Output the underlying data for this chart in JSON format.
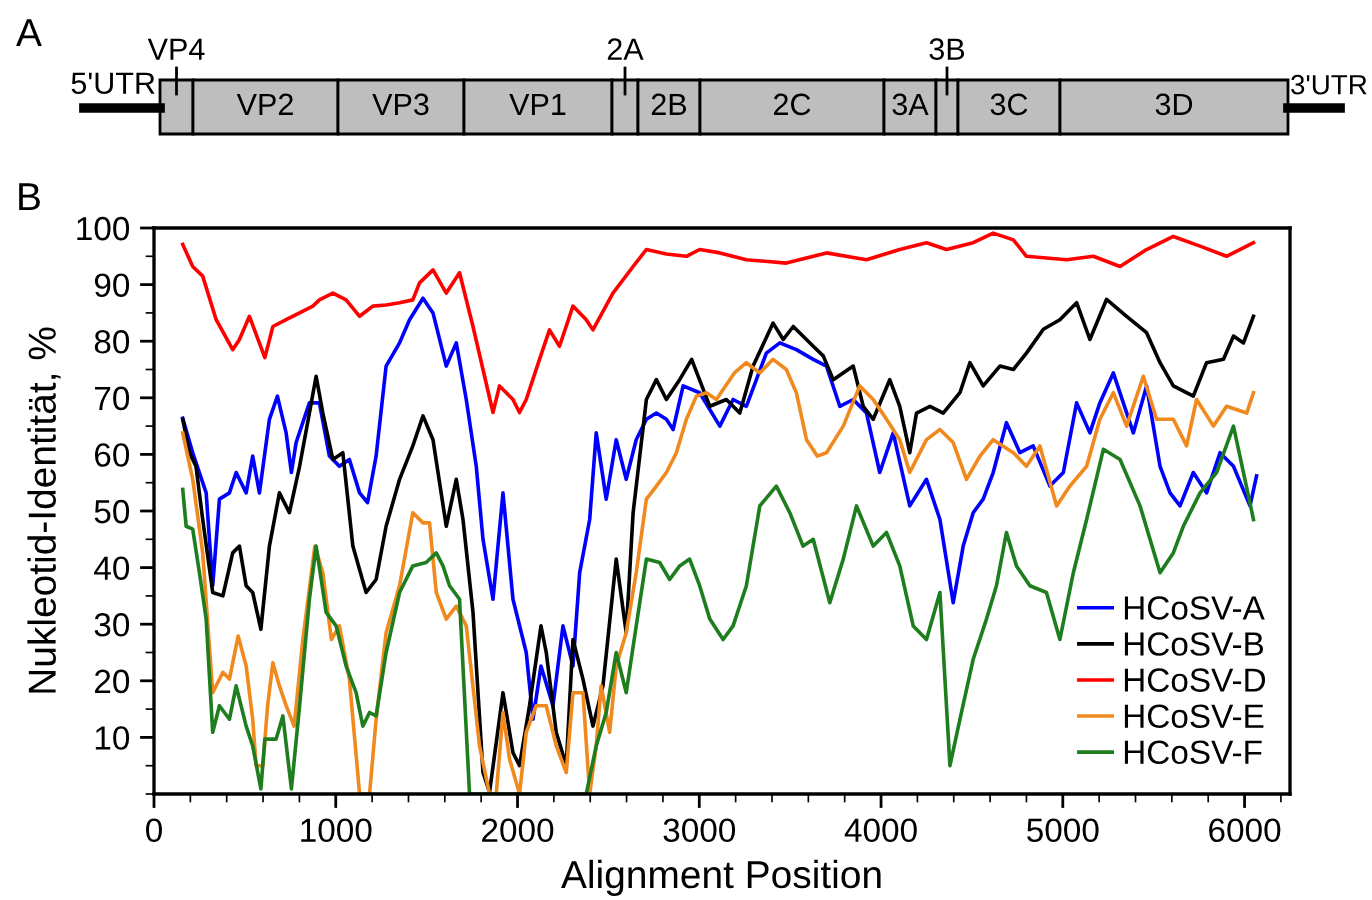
{
  "chart_data": [
    {
      "type": "other",
      "title": "A",
      "categories": [
        "5'UTR",
        "VP4",
        "VP2",
        "VP3",
        "VP1",
        "2A",
        "2B",
        "2C",
        "3A",
        "3B",
        "3C",
        "3D",
        "3'UTR"
      ]
    },
    {
      "type": "line",
      "title": "B",
      "xlabel": "Alignment Position",
      "ylabel": "Nukleotid-Identität, %",
      "xlim": [
        0,
        6250
      ],
      "ylim": [
        0,
        100
      ],
      "xticks": [
        {
          "value": 0,
          "label": "0"
        },
        1000,
        2000,
        3000,
        4000,
        5000,
        6000
      ],
      "yticks": [
        10,
        20,
        30,
        40,
        50,
        60,
        70,
        80,
        90,
        100
      ],
      "grid": false,
      "legend": "bottom right",
      "line_style": "solid",
      "marker": "none",
      "series": [
        {
          "name": "HCoSV-A",
          "color": "#0000ff",
          "x": [
            158,
            213,
            287,
            323,
            360,
            415,
            452,
            507,
            543,
            580,
            635,
            679,
            727,
            756,
            782,
            855,
            910,
            965,
            1020,
            1075,
            1131,
            1175,
            1222,
            1277,
            1351,
            1406,
            1480,
            1535,
            1608,
            1663,
            1718,
            1773,
            1810,
            1865,
            1920,
            1975,
            2048,
            2085,
            2129,
            2195,
            2250,
            2305,
            2342,
            2397,
            2433,
            2488,
            2543,
            2598,
            2653,
            2709,
            2764,
            2819,
            2856,
            2911,
            3002,
            3113,
            3186,
            3259,
            3369,
            3443,
            3534,
            3627,
            3700,
            3773,
            3847,
            3920,
            3993,
            4067,
            4158,
            4250,
            4324,
            4397,
            4452,
            4507,
            4562,
            4617,
            4690,
            4764,
            4837,
            4929,
            5003,
            5076,
            5149,
            5204,
            5278,
            5333,
            5388,
            5461,
            5535,
            5590,
            5645,
            5718,
            5791,
            5865,
            5939,
            6030,
            6066
          ],
          "values": [
            66.4,
            60.3,
            53.2,
            36.8,
            52.1,
            53.2,
            56.8,
            53.2,
            59.7,
            53.2,
            66.2,
            70.3,
            63.8,
            56.8,
            62.1,
            69.1,
            69.1,
            59.7,
            57.9,
            59.1,
            53.2,
            51.5,
            59.7,
            75.6,
            79.7,
            83.8,
            87.6,
            85.0,
            75.6,
            79.7,
            69.7,
            57.9,
            45.0,
            34.4,
            53.2,
            34.4,
            25.0,
            13.2,
            22.6,
            15.6,
            29.7,
            22.6,
            39.1,
            48.5,
            63.8,
            52.1,
            62.6,
            55.6,
            62.6,
            66.2,
            67.3,
            66.2,
            64.4,
            72.1,
            70.9,
            65.0,
            69.7,
            68.5,
            77.9,
            79.7,
            78.5,
            76.8,
            75.6,
            68.5,
            69.7,
            67.3,
            56.8,
            63.8,
            50.9,
            55.6,
            48.5,
            33.8,
            43.8,
            49.7,
            52.1,
            56.8,
            65.6,
            60.3,
            61.5,
            54.4,
            56.8,
            69.1,
            63.8,
            69.1,
            74.4,
            69.1,
            63.8,
            72.1,
            57.9,
            53.2,
            50.9,
            56.8,
            53.2,
            60.3,
            57.9,
            50.9,
            56.2
          ]
        },
        {
          "name": "HCoSV-B",
          "color": "#000000",
          "x": [
            158,
            195,
            231,
            268,
            323,
            379,
            433,
            470,
            507,
            543,
            588,
            635,
            690,
            745,
            801,
            855,
            892,
            929,
            984,
            1039,
            1094,
            1167,
            1222,
            1277,
            1351,
            1424,
            1480,
            1535,
            1608,
            1663,
            1700,
            1755,
            1810,
            1846,
            1920,
            1975,
            2011,
            2066,
            2129,
            2158,
            2213,
            2268,
            2305,
            2360,
            2415,
            2470,
            2543,
            2598,
            2636,
            2709,
            2764,
            2819,
            2892,
            2958,
            3058,
            3149,
            3223,
            3296,
            3406,
            3462,
            3517,
            3627,
            3682,
            3737,
            3847,
            3902,
            3957,
            4048,
            4103,
            4158,
            4195,
            4269,
            4342,
            4434,
            4489,
            4562,
            4654,
            4728,
            4800,
            4893,
            4984,
            5076,
            5149,
            5241,
            5351,
            5461,
            5535,
            5608,
            5718,
            5791,
            5884,
            5939,
            5994,
            6049
          ],
          "values": [
            66.2,
            60.3,
            57.9,
            48.5,
            35.6,
            35.0,
            42.6,
            43.8,
            36.8,
            35.6,
            29.1,
            43.8,
            53.2,
            49.7,
            57.9,
            67.3,
            73.8,
            67.3,
            59.1,
            60.3,
            43.8,
            35.6,
            37.9,
            47.3,
            55.6,
            61.5,
            66.8,
            62.6,
            47.3,
            55.6,
            48.5,
            32.1,
            3.8,
            0.3,
            17.9,
            7.3,
            5.0,
            15.6,
            29.7,
            25.0,
            10.9,
            5.0,
            27.3,
            20.3,
            12.0,
            19.1,
            41.5,
            28.5,
            49.7,
            69.7,
            73.2,
            69.7,
            73.2,
            76.8,
            68.5,
            69.7,
            67.3,
            75.6,
            83.2,
            80.3,
            82.6,
            79.1,
            77.4,
            73.2,
            75.6,
            68.5,
            66.2,
            73.2,
            68.5,
            60.3,
            67.3,
            68.5,
            67.3,
            70.9,
            76.2,
            72.1,
            75.6,
            75.0,
            77.9,
            82.1,
            83.8,
            86.8,
            80.3,
            87.4,
            84.4,
            81.5,
            76.2,
            72.1,
            70.3,
            76.2,
            76.8,
            80.9,
            79.7,
            84.4
          ]
        },
        {
          "name": "HCoSV-D",
          "color": "#ff0000",
          "x": [
            158,
            213,
            268,
            342,
            433,
            470,
            525,
            610,
            654,
            727,
            801,
            874,
            910,
            984,
            1057,
            1131,
            1204,
            1277,
            1351,
            1424,
            1461,
            1535,
            1608,
            1681,
            1755,
            1865,
            1901,
            1975,
            2011,
            2048,
            2121,
            2176,
            2231,
            2305,
            2378,
            2415,
            2525,
            2636,
            2709,
            2819,
            2929,
            3002,
            3113,
            3259,
            3479,
            3700,
            3920,
            4103,
            4250,
            4360,
            4507,
            4617,
            4728,
            4800,
            5021,
            5168,
            5315,
            5461,
            5608,
            5755,
            5901,
            6049
          ],
          "values": [
            97.1,
            93.2,
            91.5,
            83.8,
            78.5,
            80.3,
            84.4,
            77.1,
            82.6,
            83.8,
            85.0,
            86.2,
            87.3,
            88.5,
            87.3,
            84.4,
            86.2,
            86.4,
            86.8,
            87.3,
            90.3,
            92.6,
            88.5,
            92.1,
            82.6,
            67.4,
            72.1,
            69.7,
            67.4,
            69.7,
            76.8,
            82.0,
            79.1,
            86.2,
            83.8,
            82.0,
            88.5,
            93.2,
            96.2,
            95.4,
            95.0,
            96.2,
            95.6,
            94.4,
            93.8,
            95.6,
            94.4,
            96.2,
            97.4,
            96.2,
            97.4,
            99.1,
            97.9,
            95.0,
            94.4,
            95.0,
            93.2,
            96.2,
            98.5,
            96.8,
            95.0,
            97.4
          ]
        },
        {
          "name": "HCoSV-E",
          "color": "#f0891e",
          "x": [
            158,
            213,
            268,
            323,
            379,
            415,
            463,
            507,
            543,
            562,
            599,
            625,
            654,
            690,
            727,
            771,
            819,
            885,
            929,
            976,
            1020,
            1075,
            1131,
            1186,
            1222,
            1277,
            1351,
            1424,
            1480,
            1516,
            1553,
            1608,
            1663,
            1718,
            1791,
            1846,
            1883,
            1920,
            1956,
            2011,
            2048,
            2103,
            2158,
            2213,
            2268,
            2305,
            2360,
            2397,
            2433,
            2460,
            2507,
            2543,
            2598,
            2653,
            2709,
            2764,
            2819,
            2874,
            2929,
            2984,
            3039,
            3094,
            3193,
            3259,
            3333,
            3406,
            3479,
            3534,
            3590,
            3649,
            3700,
            3792,
            3883,
            3957,
            4030,
            4103,
            4158,
            4250,
            4324,
            4397,
            4470,
            4544,
            4617,
            4728,
            4800,
            4874,
            4966,
            5039,
            5131,
            5204,
            5278,
            5351,
            5443,
            5516,
            5608,
            5681,
            5736,
            5829,
            5901,
            6012,
            6049
          ],
          "values": [
            63.8,
            55.6,
            42.6,
            17.9,
            21.5,
            20.3,
            27.9,
            22.6,
            13.2,
            5.0,
            5.0,
            15.6,
            23.2,
            19.1,
            15.6,
            12.0,
            27.3,
            43.8,
            39.1,
            27.3,
            29.7,
            20.3,
            0,
            0,
            13.2,
            28.5,
            36.8,
            49.7,
            47.9,
            47.9,
            35.6,
            30.9,
            33.2,
            29.7,
            8.5,
            0,
            0,
            14.4,
            6.2,
            0,
            10.9,
            15.6,
            15.6,
            8.5,
            3.8,
            17.9,
            17.9,
            0,
            8.5,
            19.1,
            10.9,
            22.6,
            28.5,
            39.1,
            52.1,
            54.4,
            56.8,
            60.3,
            66.2,
            70.3,
            70.9,
            69.7,
            74.4,
            76.2,
            74.4,
            76.8,
            75.0,
            70.9,
            62.6,
            59.7,
            60.3,
            65.0,
            72.1,
            69.7,
            66.2,
            62.6,
            56.8,
            62.6,
            64.4,
            62.1,
            55.6,
            59.7,
            62.6,
            60.3,
            57.9,
            61.5,
            50.9,
            54.4,
            57.9,
            66.2,
            70.9,
            65.0,
            73.8,
            66.2,
            66.2,
            61.5,
            69.7,
            65.0,
            68.5,
            67.3,
            70.9
          ]
        },
        {
          "name": "HCoSV-F",
          "color": "#1e7d1e",
          "x": [
            158,
            177,
            213,
            250,
            287,
            323,
            360,
            415,
            452,
            507,
            543,
            588,
            610,
            672,
            709,
            756,
            801,
            855,
            892,
            947,
            1002,
            1057,
            1112,
            1149,
            1186,
            1222,
            1277,
            1351,
            1424,
            1497,
            1553,
            1590,
            1626,
            1681,
            1736,
            1791,
            1865,
            2195,
            2378,
            2433,
            2488,
            2543,
            2598,
            2653,
            2709,
            2782,
            2837,
            2892,
            2947,
            3002,
            3058,
            3131,
            3186,
            3259,
            3333,
            3424,
            3498,
            3571,
            3627,
            3718,
            3792,
            3865,
            3957,
            4030,
            4103,
            4177,
            4250,
            4324,
            4379,
            4434,
            4507,
            4580,
            4635,
            4690,
            4745,
            4819,
            4910,
            4984,
            5058,
            5131,
            5223,
            5315,
            5425,
            5535,
            5608,
            5663,
            5755,
            5846,
            5939,
            5994,
            6049
          ],
          "values": [
            53.8,
            47.3,
            46.8,
            39.1,
            30.9,
            10.9,
            15.6,
            13.2,
            19.1,
            12.0,
            8.5,
            0.9,
            9.7,
            9.7,
            13.8,
            0.9,
            15.6,
            34.4,
            43.8,
            32.1,
            29.7,
            22.6,
            17.9,
            12.0,
            14.4,
            13.8,
            25.0,
            35.6,
            40.3,
            40.9,
            42.6,
            40.3,
            36.8,
            34.4,
            0,
            0,
            0,
            0,
            0,
            8.5,
            14.4,
            25.0,
            17.9,
            29.7,
            41.5,
            40.9,
            37.9,
            40.3,
            41.5,
            36.8,
            30.9,
            27.3,
            29.7,
            36.8,
            50.9,
            54.4,
            49.7,
            43.8,
            45.0,
            33.8,
            41.5,
            50.9,
            43.8,
            46.2,
            40.3,
            29.7,
            27.3,
            35.6,
            5.0,
            13.2,
            23.8,
            30.9,
            36.8,
            46.2,
            40.3,
            36.8,
            35.6,
            27.3,
            39.1,
            48.5,
            60.9,
            59.1,
            50.9,
            39.1,
            42.6,
            47.3,
            53.2,
            56.8,
            65.0,
            56.8,
            48.5
          ]
        }
      ]
    }
  ]
}
